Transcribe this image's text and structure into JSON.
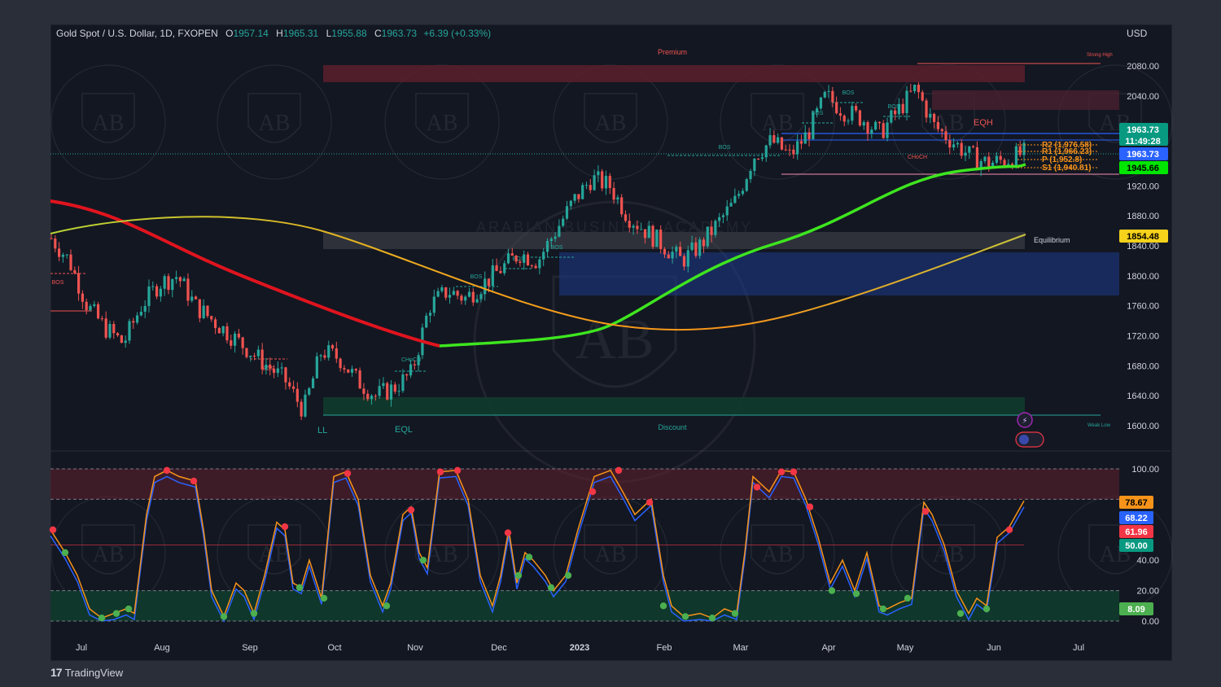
{
  "header": {
    "symbol": "Gold Spot / U.S. Dollar, 1D, FXOPEN",
    "o_label": "O",
    "o_value": "1957.14",
    "h_label": "H",
    "h_value": "1965.31",
    "l_label": "L",
    "l_value": "1955.88",
    "c_label": "C",
    "c_value": "1963.73",
    "change": "+6.39 (+0.33%)"
  },
  "currency": "USD",
  "branding": {
    "name": "TradingView",
    "mark": "17",
    "watermark_text": "ARABIAN BUSINESS ACADEMY",
    "watermark_initials": "AB"
  },
  "price_axis": {
    "ticks": [
      "2080.00",
      "2040.00",
      "1920.00",
      "1880.00",
      "1840.00",
      "1800.00",
      "1760.00",
      "1720.00",
      "1680.00",
      "1640.00",
      "1600.00"
    ],
    "ticks_values": [
      2080,
      2040,
      1920,
      1880,
      1840,
      1800,
      1760,
      1720,
      1680,
      1640,
      1600
    ],
    "range": [
      1585,
      2100
    ]
  },
  "price_tags": [
    {
      "text": "1963.73",
      "sub": "11:49:28",
      "value": 1963.73,
      "bg": "#089981",
      "fg": "#ffffff"
    },
    {
      "text": "1963.73",
      "value": 1963.73,
      "bg": "#2962ff",
      "fg": "#ffffff"
    },
    {
      "text": "1945.66",
      "value": 1945.66,
      "bg": "#00e600",
      "fg": "#000000"
    },
    {
      "text": "1854.48",
      "value": 1854.48,
      "bg": "#f7d21a",
      "fg": "#000000"
    }
  ],
  "osc_axis": {
    "ticks": [
      "100.00",
      "40.00",
      "20.00",
      "0.00"
    ],
    "ticks_values": [
      100,
      40,
      20,
      0
    ],
    "range": [
      0,
      100
    ]
  },
  "osc_tags": [
    {
      "text": "78.67",
      "value": 78.67,
      "bg": "#f7931a",
      "fg": "#000000"
    },
    {
      "text": "68.22",
      "value": 68.22,
      "bg": "#2962ff",
      "fg": "#ffffff"
    },
    {
      "text": "61.96",
      "value": 61.96,
      "bg": "#f23645",
      "fg": "#ffffff"
    },
    {
      "text": "50.00",
      "value": 50,
      "bg": "#089981",
      "fg": "#ffffff"
    },
    {
      "text": "8.09",
      "value": 8.09,
      "bg": "#4caf50",
      "fg": "#ffffff"
    }
  ],
  "time_axis": [
    "Jul",
    "Aug",
    "Sep",
    "Oct",
    "Nov",
    "Dec",
    "2023",
    "Feb",
    "Mar",
    "Apr",
    "May",
    "Jun",
    "Jul"
  ],
  "zones": {
    "premium": "Premium",
    "equilibrium": "Equilibrium",
    "discount": "Discount",
    "strong_high": "Strong High",
    "weak_low": "Weak Low",
    "eqh": "EQH",
    "ll": "LL",
    "eql": "EQL"
  },
  "structure_labels": {
    "bos": "BOS",
    "choch": "CHoCH"
  },
  "pivot_labels": [
    "R2 (1,976.58)",
    "R1 (1,966.23)",
    "P (1,952.8)",
    "S1 (1,940.81)"
  ],
  "colors": {
    "bull": "#26a69a",
    "bear": "#ef5350",
    "ma_red": "#e0141e",
    "ma_green": "#3ee51f",
    "premium_zone": "#5c1f2b",
    "discount_zone": "#113b2c",
    "eq_zone": "#3a3d45",
    "ob_blue": "#1e3a8a"
  },
  "chart_data": {
    "type": "candlestick",
    "x_labels": [
      "Jul",
      "Aug",
      "Sep",
      "Oct",
      "Nov",
      "Dec",
      "2023",
      "Feb",
      "Mar",
      "Apr",
      "May",
      "Jun",
      "Jul"
    ],
    "ylim": [
      1585,
      2100
    ],
    "series": [
      {
        "name": "Gold Spot / U.S. Dollar",
        "close_path": [
          1850,
          1820,
          1760,
          1730,
          1710,
          1760,
          1790,
          1800,
          1760,
          1740,
          1720,
          1700,
          1680,
          1660,
          1620,
          1700,
          1690,
          1660,
          1640,
          1650,
          1670,
          1760,
          1780,
          1770,
          1790,
          1810,
          1830,
          1820,
          1860,
          1900,
          1930,
          1920,
          1880,
          1860,
          1840,
          1820,
          1840,
          1870,
          1900,
          1960,
          1980,
          1960,
          1990,
          2040,
          2020,
          2010,
          1990,
          2020,
          2050,
          2000,
          1980,
          1960,
          1950,
          1955,
          1963.73
        ]
      }
    ],
    "oscillator": {
      "upper": 80,
      "mid": 50,
      "lower": 20,
      "ylim": [
        0,
        100
      ]
    }
  }
}
